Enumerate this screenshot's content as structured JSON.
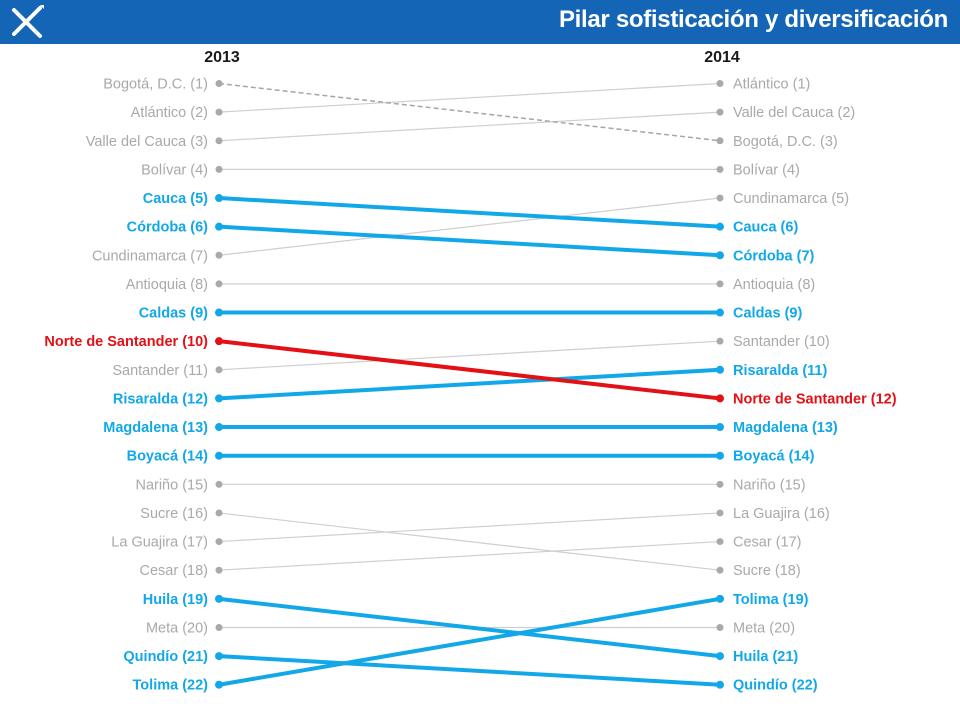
{
  "header": {
    "title": "Pilar sofisticación y diversificación",
    "logo_icon": "star-arrows-logo-icon"
  },
  "colors": {
    "header_bg": "#1565b6",
    "highlight": "#12a8e8",
    "focus": "#e31016",
    "neutral_line": "#cfcfcf",
    "neutral_text": "#a9a9a9",
    "dashed": "#a6a6a6"
  },
  "chart_data": {
    "type": "slope",
    "columns": [
      "2013",
      "2014"
    ],
    "series": [
      {
        "name": "Bogotá, D.C.",
        "rank_2013": 1,
        "rank_2014": 3,
        "style": "dashed"
      },
      {
        "name": "Atlántico",
        "rank_2013": 2,
        "rank_2014": 1,
        "style": "neutral"
      },
      {
        "name": "Valle del Cauca",
        "rank_2013": 3,
        "rank_2014": 2,
        "style": "neutral"
      },
      {
        "name": "Bolívar",
        "rank_2013": 4,
        "rank_2014": 4,
        "style": "neutral"
      },
      {
        "name": "Cauca",
        "rank_2013": 5,
        "rank_2014": 6,
        "style": "highlight"
      },
      {
        "name": "Córdoba",
        "rank_2013": 6,
        "rank_2014": 7,
        "style": "highlight"
      },
      {
        "name": "Cundinamarca",
        "rank_2013": 7,
        "rank_2014": 5,
        "style": "neutral"
      },
      {
        "name": "Antioquia",
        "rank_2013": 8,
        "rank_2014": 8,
        "style": "neutral"
      },
      {
        "name": "Caldas",
        "rank_2013": 9,
        "rank_2014": 9,
        "style": "highlight"
      },
      {
        "name": "Norte de Santander",
        "rank_2013": 10,
        "rank_2014": 12,
        "style": "focus"
      },
      {
        "name": "Santander",
        "rank_2013": 11,
        "rank_2014": 10,
        "style": "neutral"
      },
      {
        "name": "Risaralda",
        "rank_2013": 12,
        "rank_2014": 11,
        "style": "highlight"
      },
      {
        "name": "Magdalena",
        "rank_2013": 13,
        "rank_2014": 13,
        "style": "highlight"
      },
      {
        "name": "Boyacá",
        "rank_2013": 14,
        "rank_2014": 14,
        "style": "highlight"
      },
      {
        "name": "Nariño",
        "rank_2013": 15,
        "rank_2014": 15,
        "style": "neutral"
      },
      {
        "name": "Sucre",
        "rank_2013": 16,
        "rank_2014": 18,
        "style": "neutral"
      },
      {
        "name": "La Guajira",
        "rank_2013": 17,
        "rank_2014": 16,
        "style": "neutral"
      },
      {
        "name": "Cesar",
        "rank_2013": 18,
        "rank_2014": 17,
        "style": "neutral"
      },
      {
        "name": "Huila",
        "rank_2013": 19,
        "rank_2014": 21,
        "style": "highlight"
      },
      {
        "name": "Meta",
        "rank_2013": 20,
        "rank_2014": 20,
        "style": "neutral"
      },
      {
        "name": "Quindío",
        "rank_2013": 21,
        "rank_2014": 22,
        "style": "highlight"
      },
      {
        "name": "Tolima",
        "rank_2013": 22,
        "rank_2014": 19,
        "style": "highlight"
      }
    ]
  }
}
